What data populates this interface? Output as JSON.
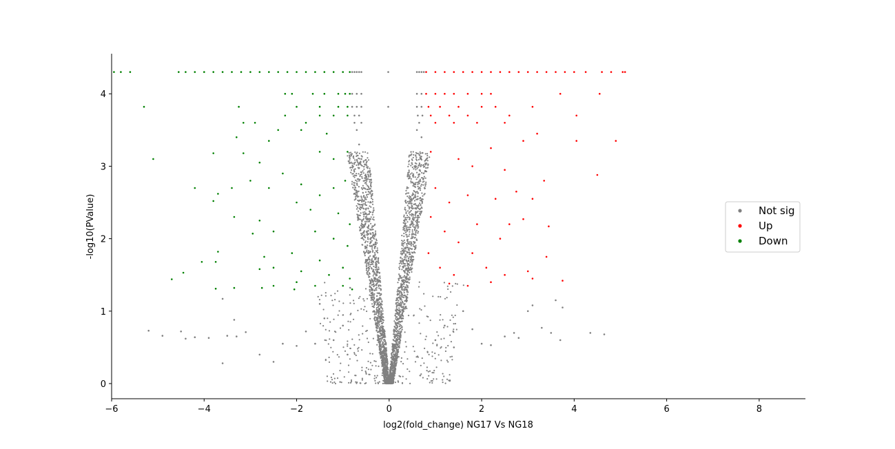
{
  "chart_data": {
    "type": "scatter",
    "title": "",
    "xlabel": "log2(fold_change) NG17 Vs NG18",
    "ylabel": "-log10(PValue)",
    "xlim": [
      -6,
      9
    ],
    "ylim": [
      -0.2,
      4.55
    ],
    "x_ticks": [
      -6,
      -4,
      -2,
      0,
      2,
      4,
      6,
      8
    ],
    "x_tick_labels": [
      "−6",
      "−4",
      "−2",
      "0",
      "2",
      "4",
      "6",
      "8"
    ],
    "y_ticks": [
      0,
      1,
      2,
      3,
      4
    ],
    "y_tick_labels": [
      "0",
      "1",
      "2",
      "3",
      "4"
    ],
    "grid": false,
    "legend_position": "right",
    "series": [
      {
        "name": "Not sig",
        "color": "#808080",
        "points": [
          [
            -0.8,
            4.3
          ],
          [
            -0.75,
            4.3
          ],
          [
            -0.7,
            4.3
          ],
          [
            -0.65,
            4.3
          ],
          [
            -0.6,
            4.3
          ],
          [
            -0.02,
            4.3
          ],
          [
            0.6,
            4.3
          ],
          [
            0.65,
            4.3
          ],
          [
            0.7,
            4.3
          ],
          [
            0.75,
            4.3
          ],
          [
            -0.8,
            4.0
          ],
          [
            -0.7,
            4.0
          ],
          [
            -0.6,
            4.0
          ],
          [
            0.6,
            4.0
          ],
          [
            0.7,
            4.0
          ],
          [
            -0.8,
            3.82
          ],
          [
            -0.7,
            3.82
          ],
          [
            -0.6,
            3.82
          ],
          [
            -0.02,
            3.82
          ],
          [
            0.6,
            3.82
          ],
          [
            0.7,
            3.82
          ],
          [
            -0.75,
            3.7
          ],
          [
            -0.65,
            3.7
          ],
          [
            0.62,
            3.7
          ],
          [
            0.72,
            3.7
          ],
          [
            -0.75,
            3.6
          ],
          [
            -0.6,
            3.6
          ],
          [
            0.65,
            3.6
          ],
          [
            -0.7,
            3.5
          ],
          [
            0.6,
            3.5
          ],
          [
            0.7,
            3.4
          ],
          [
            -0.65,
            3.3
          ],
          [
            -0.6,
            3.1
          ],
          [
            0.55,
            3.0
          ],
          [
            -0.55,
            2.7
          ],
          [
            0.5,
            2.6
          ],
          [
            -0.5,
            2.3
          ],
          [
            0.48,
            2.2
          ],
          [
            -0.45,
            1.8
          ],
          [
            0.42,
            1.7
          ],
          [
            -0.4,
            1.4
          ],
          [
            0.38,
            1.3
          ],
          [
            -0.32,
            1.0
          ],
          [
            0.3,
            0.9
          ],
          [
            -0.25,
            0.6
          ],
          [
            0.22,
            0.5
          ],
          [
            -0.15,
            0.3
          ],
          [
            0.12,
            0.25
          ],
          [
            -0.05,
            0.08
          ],
          [
            0.05,
            0.06
          ],
          [
            0.0,
            0.02
          ],
          [
            -5.2,
            0.73
          ],
          [
            -4.9,
            0.66
          ],
          [
            -4.5,
            0.72
          ],
          [
            -4.4,
            0.62
          ],
          [
            -4.2,
            0.64
          ],
          [
            -3.9,
            0.63
          ],
          [
            -3.6,
            0.28
          ],
          [
            -3.5,
            0.66
          ],
          [
            -3.3,
            0.65
          ],
          [
            -3.35,
            0.88
          ],
          [
            -3.6,
            1.17
          ],
          [
            -3.1,
            0.71
          ],
          [
            -2.8,
            0.4
          ],
          [
            -2.5,
            0.3
          ],
          [
            -2.3,
            0.55
          ],
          [
            -2.0,
            0.52
          ],
          [
            -1.8,
            0.72
          ],
          [
            -1.6,
            0.55
          ],
          [
            -1.5,
            1.1
          ],
          [
            -1.4,
            0.9
          ],
          [
            -1.2,
            0.6
          ],
          [
            -1.0,
            0.8
          ],
          [
            -0.9,
            0.4
          ],
          [
            1.0,
            0.6
          ],
          [
            1.2,
            0.8
          ],
          [
            1.4,
            0.5
          ],
          [
            1.6,
            1.0
          ],
          [
            1.8,
            0.75
          ],
          [
            2.0,
            0.55
          ],
          [
            2.2,
            0.53
          ],
          [
            2.5,
            0.65
          ],
          [
            2.7,
            0.7
          ],
          [
            2.8,
            0.63
          ],
          [
            3.0,
            1.0
          ],
          [
            3.1,
            1.08
          ],
          [
            3.3,
            0.77
          ],
          [
            3.5,
            0.7
          ],
          [
            3.6,
            1.15
          ],
          [
            3.7,
            0.6
          ],
          [
            3.75,
            1.05
          ],
          [
            4.35,
            0.7
          ],
          [
            4.65,
            0.68
          ]
        ]
      },
      {
        "name": "Up",
        "color": "#ff0000",
        "points": [
          [
            0.8,
            4.3
          ],
          [
            1.0,
            4.3
          ],
          [
            1.2,
            4.3
          ],
          [
            1.4,
            4.3
          ],
          [
            1.6,
            4.3
          ],
          [
            1.8,
            4.3
          ],
          [
            2.0,
            4.3
          ],
          [
            2.2,
            4.3
          ],
          [
            2.4,
            4.3
          ],
          [
            2.6,
            4.3
          ],
          [
            2.8,
            4.3
          ],
          [
            3.0,
            4.3
          ],
          [
            3.2,
            4.3
          ],
          [
            3.4,
            4.3
          ],
          [
            3.6,
            4.3
          ],
          [
            3.8,
            4.3
          ],
          [
            4.0,
            4.3
          ],
          [
            4.25,
            4.3
          ],
          [
            4.6,
            4.3
          ],
          [
            4.8,
            4.3
          ],
          [
            5.05,
            4.3
          ],
          [
            5.1,
            4.3
          ],
          [
            0.8,
            4.0
          ],
          [
            1.0,
            4.0
          ],
          [
            1.2,
            4.0
          ],
          [
            1.4,
            4.0
          ],
          [
            1.7,
            4.0
          ],
          [
            2.0,
            4.0
          ],
          [
            2.2,
            4.0
          ],
          [
            3.7,
            4.0
          ],
          [
            4.55,
            4.0
          ],
          [
            0.85,
            3.82
          ],
          [
            1.1,
            3.82
          ],
          [
            1.5,
            3.82
          ],
          [
            2.0,
            3.82
          ],
          [
            2.3,
            3.82
          ],
          [
            3.1,
            3.82
          ],
          [
            0.9,
            3.7
          ],
          [
            1.3,
            3.7
          ],
          [
            1.7,
            3.7
          ],
          [
            2.6,
            3.7
          ],
          [
            4.05,
            3.7
          ],
          [
            1.0,
            3.6
          ],
          [
            1.4,
            3.6
          ],
          [
            1.9,
            3.6
          ],
          [
            2.5,
            3.6
          ],
          [
            3.2,
            3.45
          ],
          [
            2.9,
            3.35
          ],
          [
            4.05,
            3.35
          ],
          [
            4.9,
            3.35
          ],
          [
            0.9,
            3.2
          ],
          [
            1.5,
            3.1
          ],
          [
            2.2,
            3.25
          ],
          [
            1.8,
            3.0
          ],
          [
            2.5,
            2.95
          ],
          [
            3.35,
            2.8
          ],
          [
            4.5,
            2.88
          ],
          [
            1.0,
            2.7
          ],
          [
            1.3,
            2.5
          ],
          [
            1.7,
            2.6
          ],
          [
            2.3,
            2.55
          ],
          [
            2.75,
            2.65
          ],
          [
            3.1,
            2.55
          ],
          [
            2.9,
            2.27
          ],
          [
            0.9,
            2.3
          ],
          [
            1.2,
            2.1
          ],
          [
            1.5,
            1.95
          ],
          [
            1.9,
            2.2
          ],
          [
            2.4,
            2.0
          ],
          [
            2.6,
            2.2
          ],
          [
            3.45,
            2.17
          ],
          [
            0.85,
            1.8
          ],
          [
            1.1,
            1.6
          ],
          [
            1.4,
            1.5
          ],
          [
            1.8,
            1.8
          ],
          [
            2.1,
            1.6
          ],
          [
            2.5,
            1.5
          ],
          [
            3.0,
            1.55
          ],
          [
            3.4,
            1.75
          ],
          [
            2.2,
            1.4
          ],
          [
            3.1,
            1.45
          ],
          [
            1.3,
            1.38
          ],
          [
            1.7,
            1.35
          ],
          [
            3.75,
            1.42
          ]
        ]
      },
      {
        "name": "Down",
        "color": "#008000",
        "points": [
          [
            -5.95,
            4.3
          ],
          [
            -5.8,
            4.3
          ],
          [
            -5.6,
            4.3
          ],
          [
            -4.55,
            4.3
          ],
          [
            -4.4,
            4.3
          ],
          [
            -4.2,
            4.3
          ],
          [
            -4.0,
            4.3
          ],
          [
            -3.8,
            4.3
          ],
          [
            -3.6,
            4.3
          ],
          [
            -3.4,
            4.3
          ],
          [
            -3.2,
            4.3
          ],
          [
            -3.0,
            4.3
          ],
          [
            -2.8,
            4.3
          ],
          [
            -2.6,
            4.3
          ],
          [
            -2.4,
            4.3
          ],
          [
            -2.2,
            4.3
          ],
          [
            -2.0,
            4.3
          ],
          [
            -1.8,
            4.3
          ],
          [
            -1.6,
            4.3
          ],
          [
            -1.4,
            4.3
          ],
          [
            -1.2,
            4.3
          ],
          [
            -1.0,
            4.3
          ],
          [
            -0.85,
            4.3
          ],
          [
            -2.25,
            4.0
          ],
          [
            -2.1,
            4.0
          ],
          [
            -1.65,
            4.0
          ],
          [
            -1.4,
            4.0
          ],
          [
            -1.1,
            4.0
          ],
          [
            -0.95,
            4.0
          ],
          [
            -0.85,
            4.0
          ],
          [
            -5.3,
            3.82
          ],
          [
            -3.25,
            3.82
          ],
          [
            -2.0,
            3.82
          ],
          [
            -1.5,
            3.82
          ],
          [
            -1.1,
            3.82
          ],
          [
            -0.9,
            3.82
          ],
          [
            -2.25,
            3.7
          ],
          [
            -1.5,
            3.7
          ],
          [
            -1.2,
            3.7
          ],
          [
            -0.9,
            3.7
          ],
          [
            -3.15,
            3.6
          ],
          [
            -2.9,
            3.6
          ],
          [
            -1.8,
            3.6
          ],
          [
            -2.4,
            3.5
          ],
          [
            -1.9,
            3.5
          ],
          [
            -1.35,
            3.45
          ],
          [
            -3.3,
            3.4
          ],
          [
            -2.6,
            3.35
          ],
          [
            -5.1,
            3.1
          ],
          [
            -3.8,
            3.18
          ],
          [
            -3.15,
            3.18
          ],
          [
            -2.8,
            3.05
          ],
          [
            -1.5,
            3.2
          ],
          [
            -1.2,
            3.1
          ],
          [
            -0.9,
            3.2
          ],
          [
            -4.2,
            2.7
          ],
          [
            -3.7,
            2.62
          ],
          [
            -3.4,
            2.7
          ],
          [
            -3.0,
            2.8
          ],
          [
            -2.6,
            2.7
          ],
          [
            -2.3,
            2.9
          ],
          [
            -1.9,
            2.75
          ],
          [
            -1.5,
            2.6
          ],
          [
            -1.2,
            2.7
          ],
          [
            -0.95,
            2.8
          ],
          [
            -3.8,
            2.52
          ],
          [
            -3.35,
            2.3
          ],
          [
            -2.8,
            2.25
          ],
          [
            -2.0,
            2.5
          ],
          [
            -1.7,
            2.4
          ],
          [
            -1.1,
            2.35
          ],
          [
            -0.85,
            2.2
          ],
          [
            -2.5,
            2.1
          ],
          [
            -2.95,
            2.07
          ],
          [
            -1.6,
            2.1
          ],
          [
            -1.2,
            2.0
          ],
          [
            -0.9,
            1.9
          ],
          [
            -3.7,
            1.82
          ],
          [
            -2.7,
            1.75
          ],
          [
            -2.1,
            1.8
          ],
          [
            -1.5,
            1.7
          ],
          [
            -1.0,
            1.6
          ],
          [
            -4.05,
            1.68
          ],
          [
            -3.75,
            1.68
          ],
          [
            -2.5,
            1.6
          ],
          [
            -1.9,
            1.55
          ],
          [
            -1.3,
            1.5
          ],
          [
            -0.85,
            1.45
          ],
          [
            -4.7,
            1.44
          ],
          [
            -4.45,
            1.53
          ],
          [
            -2.8,
            1.58
          ],
          [
            -2.0,
            1.4
          ],
          [
            -1.6,
            1.35
          ],
          [
            -1.0,
            1.35
          ],
          [
            -3.75,
            1.31
          ],
          [
            -3.35,
            1.32
          ],
          [
            -2.75,
            1.32
          ],
          [
            -2.5,
            1.35
          ],
          [
            -2.05,
            1.3
          ],
          [
            -0.8,
            1.3
          ]
        ]
      }
    ]
  }
}
